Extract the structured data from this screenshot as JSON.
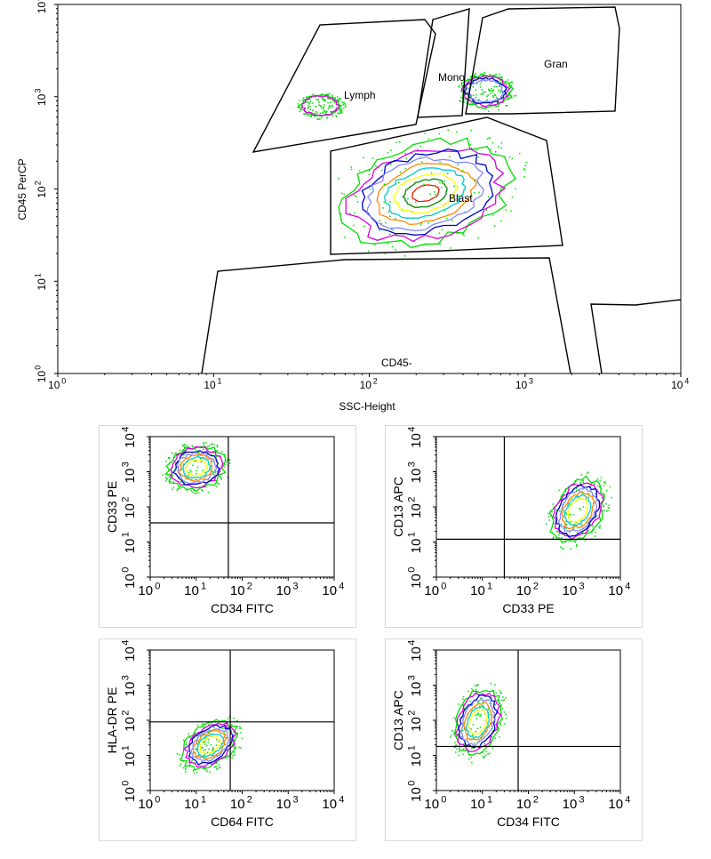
{
  "chart_data": [
    {
      "type": "contour",
      "xlabel": "SSC-Height",
      "ylabel": "CD45 PerCP",
      "x_scale": "log",
      "y_scale": "log",
      "xlim": [
        1,
        10000
      ],
      "ylim": [
        1,
        10000
      ],
      "x_ticks": [
        "10^0",
        "10^1",
        "10^2",
        "10^3",
        "10^4"
      ],
      "y_ticks": [
        "10^0",
        "10^1",
        "10^2",
        "10^3",
        "10^4"
      ],
      "gates": [
        {
          "name": "Lymph"
        },
        {
          "name": "Mono"
        },
        {
          "name": "Gran"
        },
        {
          "name": "Blast"
        },
        {
          "name": "CD45-"
        }
      ],
      "populations": [
        {
          "name": "Blast",
          "center_x": 230,
          "center_y": 90
        },
        {
          "name": "Mono",
          "center_x": 560,
          "center_y": 1500
        },
        {
          "name": "Lymph",
          "center_x": 40,
          "center_y": 1000
        }
      ],
      "contour_colors": [
        "#00dd00",
        "#dd00dd",
        "#0000cc",
        "#8888ff",
        "#ff8800",
        "#00cccc",
        "#ffff00",
        "#008800",
        "#dd2200"
      ]
    },
    {
      "type": "contour",
      "xlabel": "CD34 FITC",
      "ylabel": "CD33 PE",
      "x_scale": "log",
      "y_scale": "log",
      "xlim": [
        1,
        10000
      ],
      "ylim": [
        1,
        10000
      ],
      "x_ticks": [
        "10^0",
        "10^1",
        "10^2",
        "10^3",
        "10^4"
      ],
      "y_ticks": [
        "10^0",
        "10^1",
        "10^2",
        "10^3",
        "10^4"
      ],
      "quadrant": [
        50,
        35
      ],
      "populations": [
        {
          "center_x": 10,
          "center_y": 1300
        }
      ]
    },
    {
      "type": "contour",
      "xlabel": "CD33 PE",
      "ylabel": "CD13 APC",
      "x_scale": "log",
      "y_scale": "log",
      "xlim": [
        1,
        10000
      ],
      "ylim": [
        1,
        10000
      ],
      "x_ticks": [
        "10^0",
        "10^1",
        "10^2",
        "10^3",
        "10^4"
      ],
      "y_ticks": [
        "10^0",
        "10^1",
        "10^2",
        "10^3",
        "10^4"
      ],
      "quadrant": [
        30,
        12
      ],
      "populations": [
        {
          "center_x": 1200,
          "center_y": 80
        }
      ]
    },
    {
      "type": "contour",
      "xlabel": "CD64 FITC",
      "ylabel": "HLA-DR PE",
      "x_scale": "log",
      "y_scale": "log",
      "xlim": [
        1,
        10000
      ],
      "ylim": [
        1,
        10000
      ],
      "x_ticks": [
        "10^0",
        "10^1",
        "10^2",
        "10^3",
        "10^4"
      ],
      "y_ticks": [
        "10^0",
        "10^1",
        "10^2",
        "10^3",
        "10^4"
      ],
      "quadrant": [
        55,
        90
      ],
      "populations": [
        {
          "center_x": 20,
          "center_y": 20
        }
      ]
    },
    {
      "type": "contour",
      "xlabel": "CD34 FITC",
      "ylabel": "CD13 APC",
      "x_scale": "log",
      "y_scale": "log",
      "xlim": [
        1,
        10000
      ],
      "ylim": [
        1,
        10000
      ],
      "x_ticks": [
        "10^0",
        "10^1",
        "10^2",
        "10^3",
        "10^4"
      ],
      "y_ticks": [
        "10^0",
        "10^1",
        "10^2",
        "10^3",
        "10^4"
      ],
      "quadrant": [
        60,
        18
      ],
      "populations": [
        {
          "center_x": 8,
          "center_y": 90
        }
      ]
    }
  ]
}
